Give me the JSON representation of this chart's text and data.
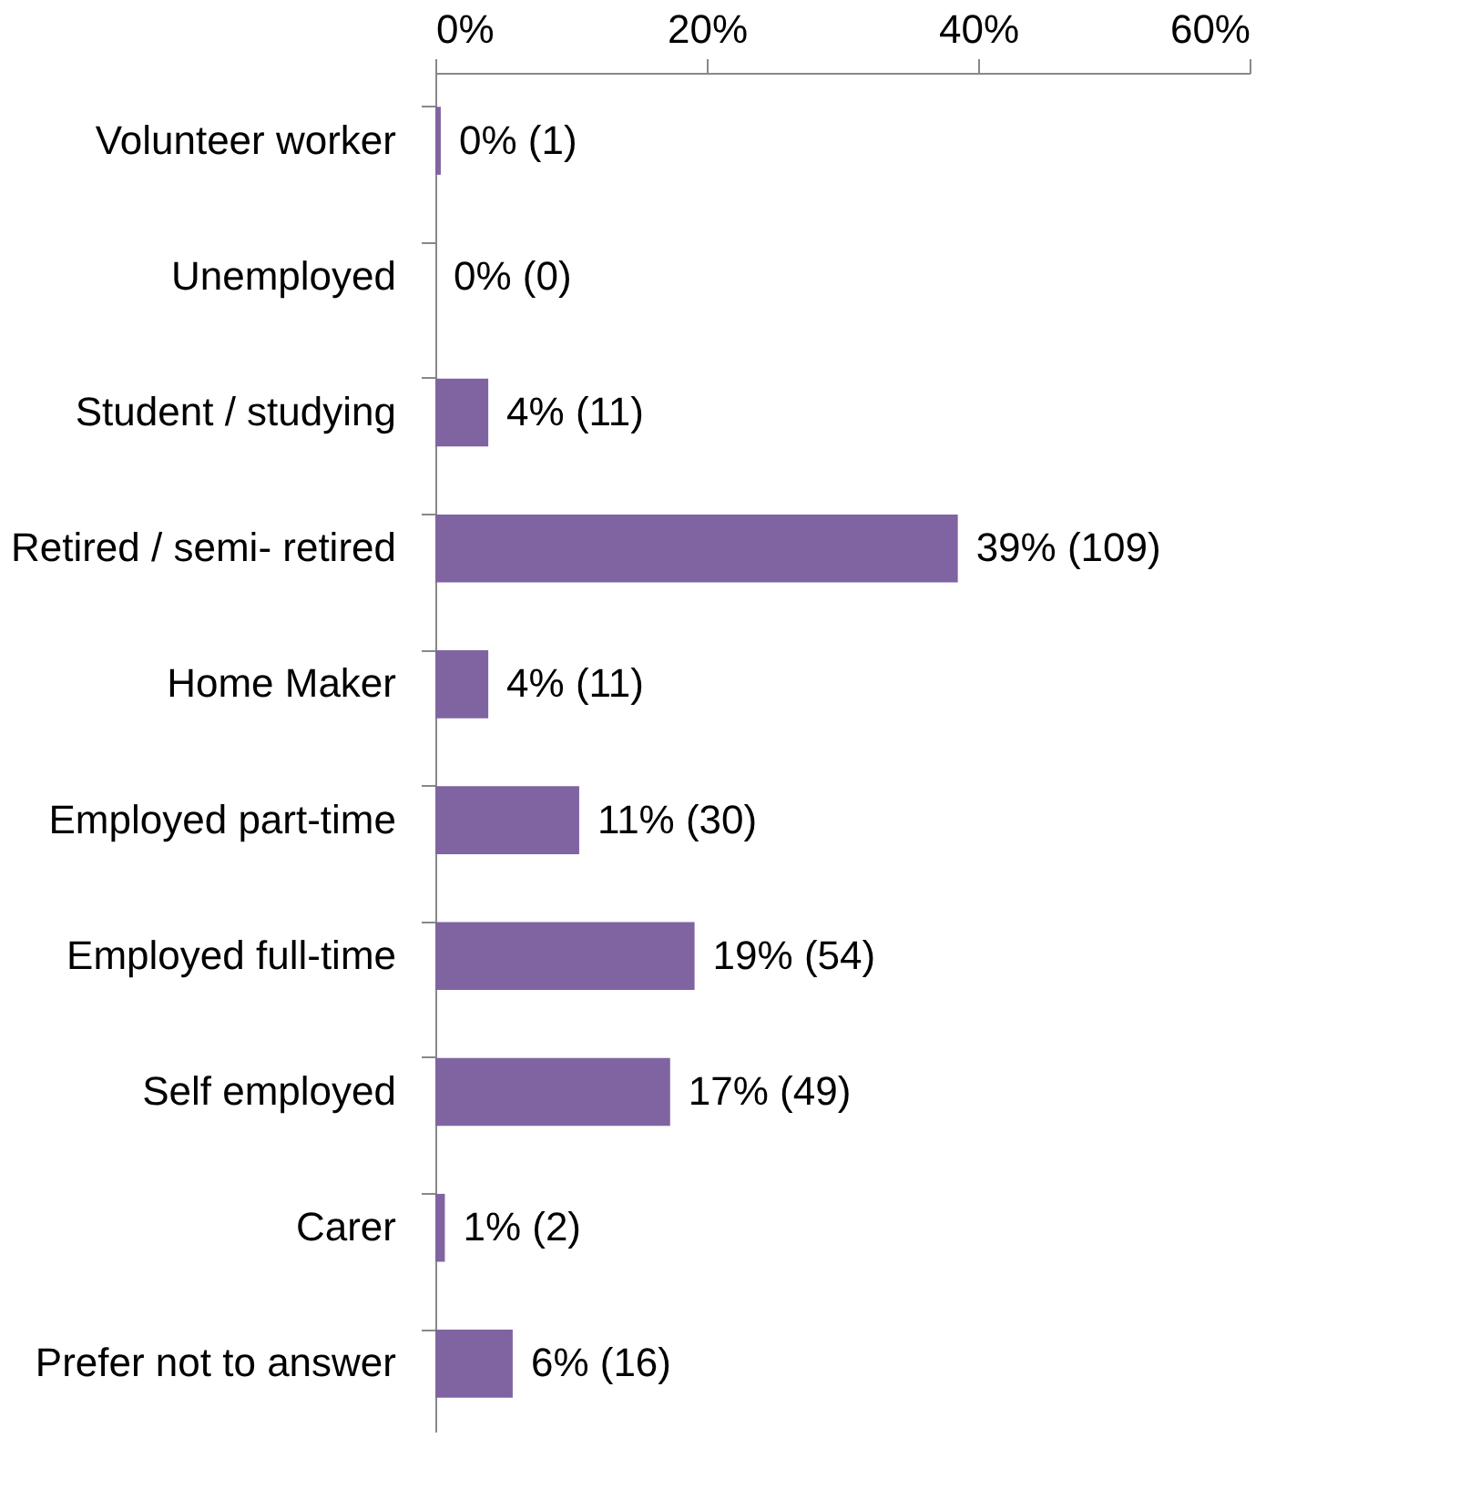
{
  "chart_data": {
    "type": "bar",
    "orientation": "horizontal",
    "categories": [
      "Volunteer worker",
      "Unemployed",
      "Student / studying",
      "Retired / semi- retired",
      "Home Maker",
      "Employed part-time",
      "Employed full-time",
      "Self employed",
      "Carer",
      "Prefer not to answer"
    ],
    "values": [
      0.4,
      0,
      3.9,
      38.5,
      3.9,
      10.6,
      19.1,
      17.3,
      0.7,
      5.7
    ],
    "value_labels": [
      "0% (1)",
      "0% (0)",
      "4% (11)",
      "39% (109)",
      "4% (11)",
      "11% (30)",
      "19% (54)",
      "17% (49)",
      "1% (2)",
      "6% (16)"
    ],
    "color": "#8064a2",
    "xlim": [
      0,
      60
    ],
    "xticks": [
      {
        "value": 0,
        "label": "0%"
      },
      {
        "value": 20,
        "label": "20%"
      },
      {
        "value": 40,
        "label": "40%"
      },
      {
        "value": 60,
        "label": "60%"
      }
    ],
    "grid": false
  }
}
